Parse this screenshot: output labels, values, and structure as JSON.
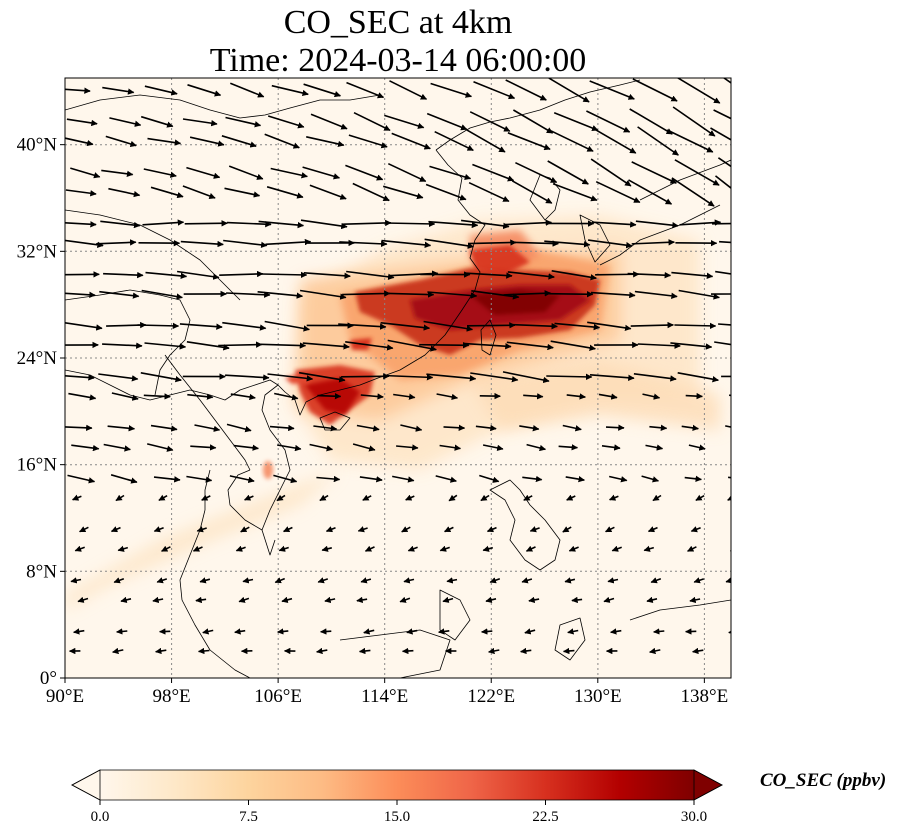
{
  "title": {
    "line1": "CO_SEC at 4km",
    "line2": "Time: 2024-03-14 06:00:00"
  },
  "map": {
    "lon_range": [
      90,
      140
    ],
    "lat_range": [
      0,
      45
    ],
    "lon_ticks": [
      "90°E",
      "98°E",
      "106°E",
      "114°E",
      "122°E",
      "130°E",
      "138°E"
    ],
    "lon_values": [
      90,
      98,
      106,
      114,
      122,
      130,
      138
    ],
    "lat_ticks": [
      "0°",
      "8°N",
      "16°N",
      "24°N",
      "32°N",
      "40°N"
    ],
    "lat_values": [
      0,
      8,
      16,
      24,
      32,
      40
    ],
    "field": "CO_SEC concentration with wind vectors",
    "grid": "dotted"
  },
  "colorbar": {
    "label": "CO_SEC (ppbv)",
    "ticks": [
      "0.0",
      "7.5",
      "15.0",
      "22.5",
      "30.0"
    ],
    "tick_values": [
      0,
      7.5,
      15,
      22.5,
      30
    ],
    "range": [
      0,
      30
    ],
    "extend": "both",
    "colormap": [
      "#fff7ec",
      "#fee8c8",
      "#fdd49e",
      "#fdbb84",
      "#fc8d59",
      "#ef6548",
      "#d7301f",
      "#b30000",
      "#7f0000"
    ]
  }
}
